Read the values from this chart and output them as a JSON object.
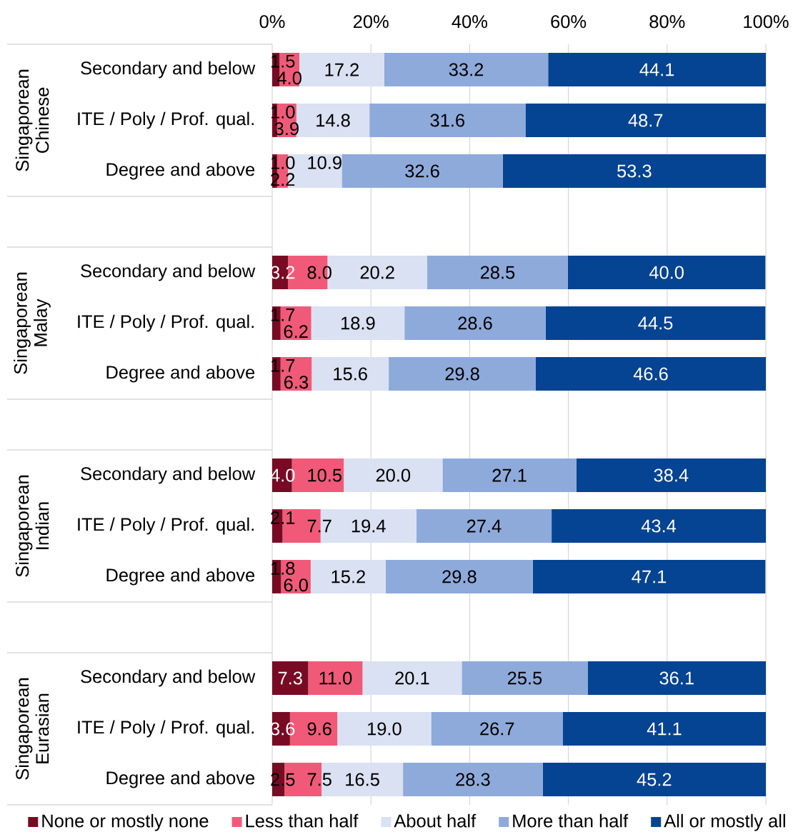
{
  "chart_data": {
    "type": "bar",
    "orientation": "horizontal",
    "stacked": true,
    "categories": [
      "Secondary and below",
      "ITE / Poly / Prof. qual.",
      "Degree and above",
      null,
      "Secondary and below",
      "ITE / Poly / Prof. qual.",
      "Degree and above",
      null,
      "Secondary and below",
      "ITE / Poly / Prof. qual.",
      "Degree and above",
      null,
      "Secondary and below",
      "ITE / Poly / Prof. qual.",
      "Degree and above"
    ],
    "series": [
      {
        "name": "None or mostly none",
        "color": "#780A23",
        "values": [
          1.5,
          1.0,
          1.0,
          null,
          3.2,
          1.7,
          1.7,
          null,
          4.0,
          2.1,
          1.8,
          null,
          7.3,
          3.6,
          2.5
        ],
        "value_labels": [
          "1.5",
          "1.0",
          "1.0",
          null,
          "3.2",
          "1.7",
          "1.7",
          null,
          "4.0",
          "2.1",
          "1.8",
          null,
          "7.3",
          "3.6",
          "2.5"
        ]
      },
      {
        "name": "Less than half",
        "color": "#F05A78",
        "values": [
          4.0,
          3.9,
          2.2,
          null,
          8.0,
          6.2,
          6.3,
          null,
          10.5,
          7.7,
          6.0,
          null,
          11.0,
          9.6,
          7.5
        ],
        "value_labels": [
          "4.0",
          "3.9",
          "2.2",
          null,
          "8.0",
          "6.2",
          "6.3",
          null,
          "10.5",
          "7.7",
          "6.0",
          null,
          "11.0",
          "9.6",
          "7.5"
        ]
      },
      {
        "name": "About half",
        "color": "#D9E1F2",
        "values": [
          17.2,
          14.8,
          10.9,
          null,
          20.2,
          18.9,
          15.6,
          null,
          20.0,
          19.4,
          15.2,
          null,
          20.1,
          19.0,
          16.5
        ],
        "value_labels": [
          "17.2",
          "14.8",
          "10.9",
          null,
          "20.2",
          "18.9",
          "15.6",
          null,
          "20.0",
          "19.4",
          "15.2",
          null,
          "20.1",
          "19.0",
          "16.5"
        ]
      },
      {
        "name": "More than half",
        "color": "#8EAADB",
        "values": [
          33.2,
          31.6,
          32.6,
          null,
          28.5,
          28.6,
          29.8,
          null,
          27.1,
          27.4,
          29.8,
          null,
          25.5,
          26.7,
          28.3
        ],
        "value_labels": [
          "33.2",
          "31.6",
          "32.6",
          null,
          "28.5",
          "28.6",
          "29.8",
          null,
          "27.1",
          "27.4",
          "29.8",
          null,
          "25.5",
          "26.7",
          "28.3"
        ]
      },
      {
        "name": "All or mostly all",
        "color": "#054393",
        "values": [
          44.1,
          48.7,
          53.3,
          null,
          40.0,
          44.5,
          46.6,
          null,
          38.4,
          43.4,
          47.1,
          null,
          36.1,
          41.1,
          45.2
        ],
        "value_labels": [
          "44.1",
          "48.7",
          "53.3",
          null,
          "40.0",
          "44.5",
          "46.6",
          null,
          "38.4",
          "43.4",
          "47.1",
          null,
          "36.1",
          "41.1",
          "45.2"
        ]
      }
    ],
    "xlim": [
      0,
      100
    ],
    "xticks": [
      {
        "value": 0,
        "label": "0%"
      },
      {
        "value": 20,
        "label": "20%"
      },
      {
        "value": 40,
        "label": "40%"
      },
      {
        "value": 60,
        "label": "60%"
      },
      {
        "value": 80,
        "label": "80%"
      },
      {
        "value": 100,
        "label": "100%"
      }
    ],
    "grid": "x",
    "legend": "bottom",
    "annotations": [
      "Singaporean Chinese",
      "Singaporean Malay",
      "Singaporean Indian",
      "Singaporean Eurasian"
    ]
  }
}
